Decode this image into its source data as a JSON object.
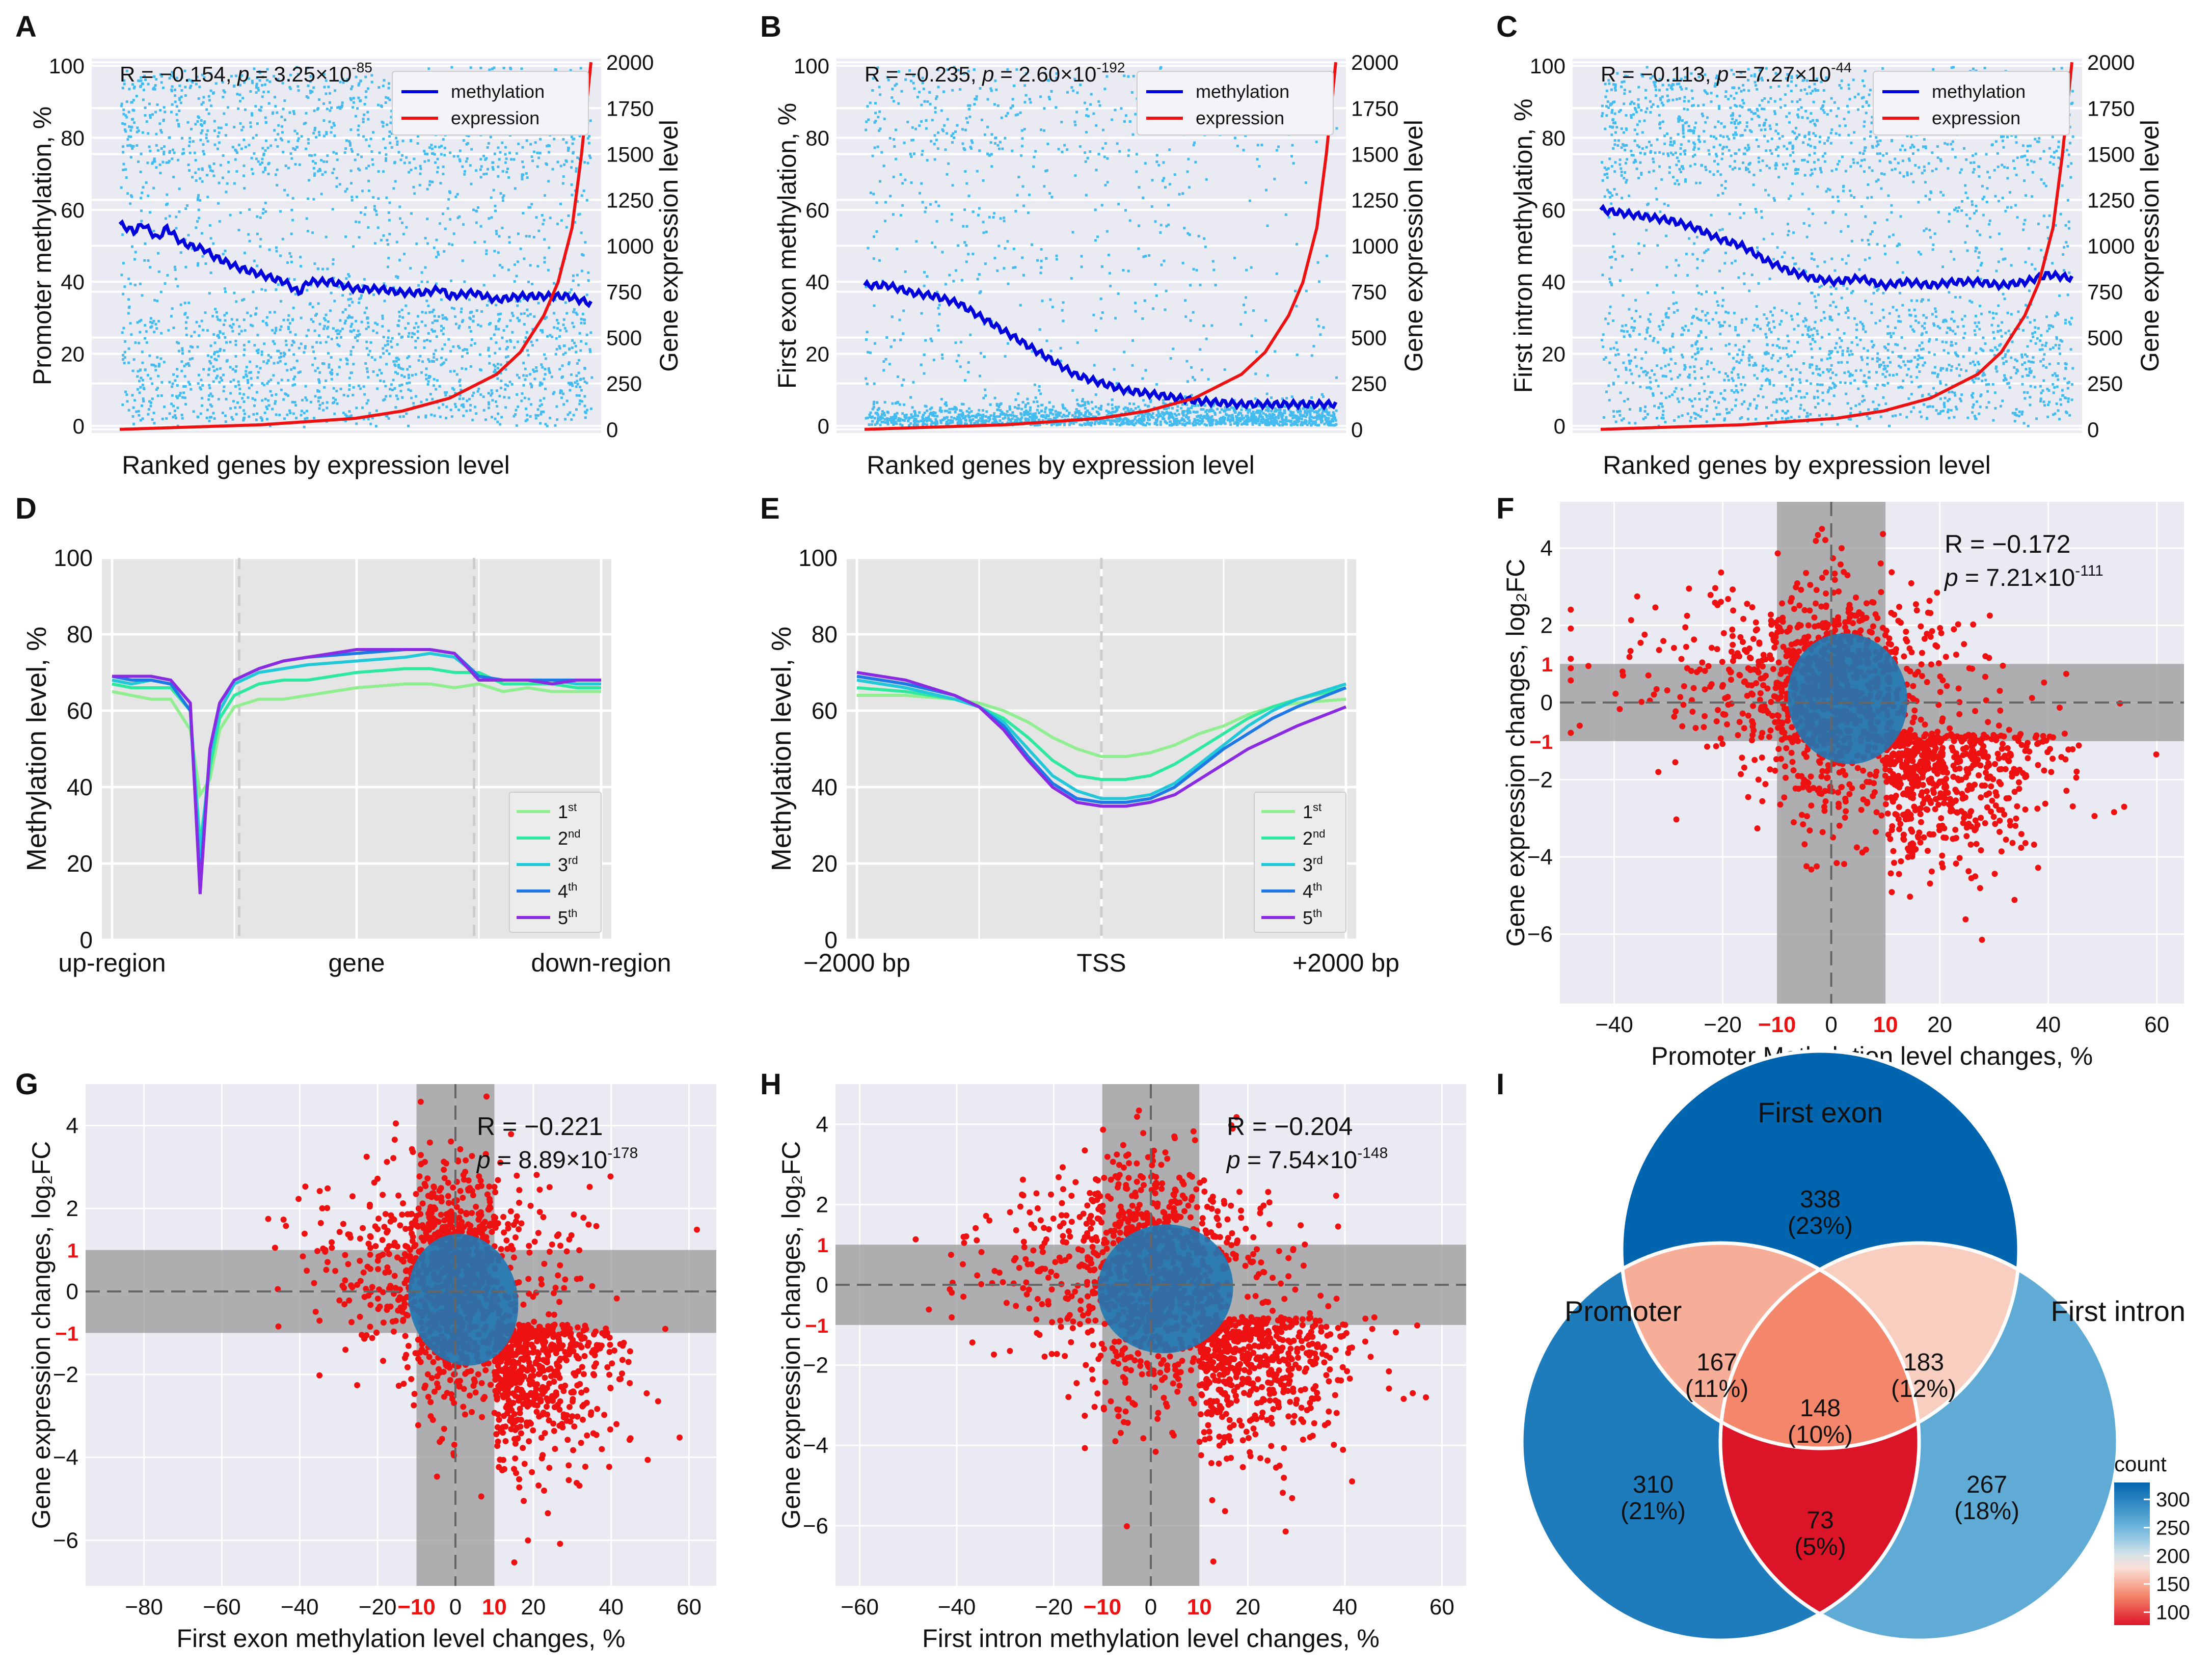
{
  "figure": {
    "colors": {
      "grey_bg": "#e5e5e5",
      "seaborn_bg": "#eaeaf2",
      "scatter_dot": "#44bbee",
      "methylation_line": "#0000dd",
      "expression_line": "#ee1111",
      "red_dot": "#ee1111",
      "blue_ellipse": "#1f78b4",
      "shade": "#999999",
      "red_label": "#ee1111"
    }
  },
  "chart_data": [
    {
      "panel": "A",
      "type": "line",
      "annotation": {
        "prefix": "R = −0.154, ",
        "p": "p",
        "mid": " = 3.25×10",
        "exp": "-85"
      },
      "xlabel": "Ranked genes by expression level",
      "ylabel": "Promoter methylation, %",
      "ylabel2": "Gene expression level",
      "ylim": [
        -2,
        102
      ],
      "y_ticks": [
        0,
        20,
        40,
        60,
        80,
        100
      ],
      "y2lim": [
        -20,
        2020
      ],
      "y2_ticks": [
        0,
        250,
        500,
        750,
        1000,
        1250,
        1500,
        1750,
        2000
      ],
      "legend": [
        "methylation",
        "expression"
      ],
      "legend_position": "top-right",
      "series": [
        {
          "name": "methylation",
          "x": [
            0,
            0.03,
            0.05,
            0.08,
            0.1,
            0.13,
            0.15,
            0.18,
            0.2,
            0.25,
            0.3,
            0.35,
            0.38,
            0.4,
            0.45,
            0.5,
            0.55,
            0.6,
            0.65,
            0.68,
            0.7,
            0.75,
            0.8,
            0.85,
            0.9,
            0.95,
            1.0
          ],
          "values": [
            56,
            54,
            56,
            52,
            55,
            51,
            50,
            49,
            47,
            44,
            42,
            40,
            37,
            40,
            40,
            38,
            38,
            37,
            37,
            38,
            36,
            37,
            35,
            36,
            36,
            36,
            34
          ]
        },
        {
          "name": "expression",
          "x": [
            0,
            0.3,
            0.5,
            0.6,
            0.7,
            0.8,
            0.85,
            0.9,
            0.93,
            0.96,
            0.98,
            1.0
          ],
          "values": [
            0,
            25,
            60,
            100,
            170,
            300,
            420,
            620,
            800,
            1100,
            1500,
            2000
          ]
        }
      ]
    },
    {
      "panel": "B",
      "type": "line",
      "annotation": {
        "prefix": "R = −0.235, ",
        "p": "p",
        "mid": " = 2.60×10",
        "exp": "-192"
      },
      "xlabel": "Ranked genes by expression level",
      "ylabel": "First exon methylation, %",
      "ylabel2": "Gene expression level",
      "ylim": [
        -2,
        102
      ],
      "y_ticks": [
        0,
        20,
        40,
        60,
        80,
        100
      ],
      "y2lim": [
        -20,
        2020
      ],
      "y2_ticks": [
        0,
        250,
        500,
        750,
        1000,
        1250,
        1500,
        1750,
        2000
      ],
      "legend": [
        "methylation",
        "expression"
      ],
      "legend_position": "top-right",
      "series": [
        {
          "name": "methylation",
          "x": [
            0,
            0.05,
            0.1,
            0.15,
            0.2,
            0.25,
            0.3,
            0.35,
            0.4,
            0.45,
            0.5,
            0.55,
            0.6,
            0.65,
            0.7,
            0.8,
            0.9,
            1.0
          ],
          "values": [
            39,
            39,
            37,
            36,
            34,
            30,
            26,
            22,
            18,
            14,
            12,
            10,
            9,
            8,
            7,
            6,
            6,
            6
          ]
        },
        {
          "name": "expression",
          "x": [
            0,
            0.3,
            0.5,
            0.6,
            0.7,
            0.8,
            0.85,
            0.9,
            0.93,
            0.96,
            0.98,
            1.0
          ],
          "values": [
            0,
            25,
            60,
            100,
            170,
            300,
            420,
            620,
            800,
            1100,
            1500,
            2000
          ]
        }
      ]
    },
    {
      "panel": "C",
      "type": "line",
      "annotation": {
        "prefix": "R = −0.113, ",
        "p": "p",
        "mid": " = 7.27×10",
        "exp": "-44"
      },
      "xlabel": "Ranked genes by expression level",
      "ylabel": "First intron methylation, %",
      "ylabel2": "Gene expression level",
      "ylim": [
        -2,
        102
      ],
      "y_ticks": [
        0,
        20,
        40,
        60,
        80,
        100
      ],
      "y2lim": [
        -20,
        2020
      ],
      "y2_ticks": [
        0,
        250,
        500,
        750,
        1000,
        1250,
        1500,
        1750,
        2000
      ],
      "legend": [
        "methylation",
        "expression"
      ],
      "legend_position": "top-right",
      "series": [
        {
          "name": "methylation",
          "x": [
            0,
            0.05,
            0.1,
            0.15,
            0.2,
            0.25,
            0.3,
            0.35,
            0.4,
            0.45,
            0.5,
            0.55,
            0.6,
            0.65,
            0.7,
            0.75,
            0.8,
            0.85,
            0.9,
            0.95,
            1.0
          ],
          "values": [
            60,
            59,
            58,
            57,
            55,
            52,
            50,
            46,
            43,
            41,
            40,
            41,
            39,
            40,
            39,
            40,
            40,
            39,
            40,
            42,
            41
          ]
        },
        {
          "name": "expression",
          "x": [
            0,
            0.3,
            0.5,
            0.6,
            0.7,
            0.8,
            0.85,
            0.9,
            0.93,
            0.96,
            0.98,
            1.0
          ],
          "values": [
            0,
            25,
            60,
            100,
            170,
            300,
            420,
            620,
            800,
            1100,
            1500,
            2000
          ]
        }
      ]
    },
    {
      "panel": "D",
      "type": "line",
      "xlabel": "",
      "ylabel": "Methylation level, %",
      "ylim": [
        0,
        100
      ],
      "y_ticks": [
        0,
        20,
        40,
        60,
        80,
        100
      ],
      "categories": [
        "up-region",
        "gene",
        "down-region"
      ],
      "legend_position": "bottom-right",
      "x": [
        0,
        0.04,
        0.08,
        0.12,
        0.16,
        0.18,
        0.2,
        0.22,
        0.25,
        0.3,
        0.35,
        0.4,
        0.5,
        0.6,
        0.65,
        0.7,
        0.75,
        0.8,
        0.85,
        0.9,
        0.95,
        1.0
      ],
      "series": [
        {
          "name": "1",
          "sup": "st",
          "color": "#90ee90",
          "values": [
            65,
            64,
            63,
            63,
            55,
            38,
            42,
            55,
            61,
            63,
            63,
            64,
            66,
            67,
            67,
            66,
            67,
            65,
            66,
            65,
            65,
            65
          ]
        },
        {
          "name": "2",
          "sup": "nd",
          "color": "#2ee8a0",
          "values": [
            67,
            66,
            66,
            66,
            60,
            25,
            45,
            58,
            64,
            67,
            68,
            68,
            70,
            71,
            71,
            70,
            70,
            67,
            67,
            67,
            66,
            66
          ]
        },
        {
          "name": "3",
          "sup": "rd",
          "color": "#22c8d8",
          "values": [
            68,
            67,
            68,
            67,
            60,
            22,
            48,
            60,
            67,
            70,
            71,
            72,
            73,
            74,
            75,
            74,
            69,
            68,
            68,
            68,
            67,
            67
          ]
        },
        {
          "name": "4",
          "sup": "th",
          "color": "#1e78e6",
          "values": [
            69,
            68,
            68,
            67,
            60,
            15,
            50,
            62,
            68,
            71,
            73,
            74,
            75,
            76,
            76,
            75,
            69,
            68,
            68,
            68,
            68,
            68
          ]
        },
        {
          "name": "5",
          "sup": "th",
          "color": "#8a2be2",
          "values": [
            69,
            69,
            69,
            68,
            62,
            12,
            50,
            62,
            68,
            71,
            73,
            74,
            76,
            76,
            76,
            75,
            68,
            68,
            68,
            67,
            68,
            68
          ]
        }
      ]
    },
    {
      "panel": "E",
      "type": "line",
      "xlabel": "",
      "ylabel": "Methylation level, %",
      "ylim": [
        0,
        100
      ],
      "y_ticks": [
        0,
        20,
        40,
        60,
        80,
        100
      ],
      "categories": [
        "−2000 bp",
        "TSS",
        "+2000 bp"
      ],
      "legend_position": "bottom-right",
      "x": [
        0,
        0.1,
        0.2,
        0.25,
        0.3,
        0.35,
        0.4,
        0.45,
        0.5,
        0.55,
        0.6,
        0.65,
        0.7,
        0.75,
        0.8,
        0.85,
        0.9,
        1.0
      ],
      "series": [
        {
          "name": "1",
          "sup": "st",
          "color": "#90ee90",
          "values": [
            64,
            64,
            63,
            62,
            60,
            57,
            53,
            50,
            48,
            48,
            49,
            51,
            54,
            56,
            59,
            61,
            62,
            63
          ]
        },
        {
          "name": "2",
          "sup": "nd",
          "color": "#2ee8a0",
          "values": [
            66,
            65,
            63,
            61,
            58,
            53,
            47,
            43,
            42,
            42,
            43,
            46,
            50,
            54,
            58,
            61,
            63,
            66
          ]
        },
        {
          "name": "3",
          "sup": "rd",
          "color": "#22c8d8",
          "values": [
            68,
            66,
            63,
            61,
            57,
            50,
            43,
            39,
            37,
            37,
            38,
            41,
            46,
            51,
            56,
            60,
            63,
            67
          ]
        },
        {
          "name": "4",
          "sup": "th",
          "color": "#1e78e6",
          "values": [
            69,
            67,
            64,
            61,
            56,
            48,
            41,
            37,
            36,
            36,
            37,
            40,
            45,
            50,
            54,
            58,
            61,
            66
          ]
        },
        {
          "name": "5",
          "sup": "th",
          "color": "#8a2be2",
          "values": [
            70,
            68,
            64,
            61,
            55,
            47,
            40,
            36,
            35,
            35,
            36,
            38,
            42,
            46,
            50,
            53,
            56,
            61
          ]
        }
      ]
    },
    {
      "panel": "F",
      "type": "scatter",
      "annotation": {
        "line1": "R = −0.172",
        "p": "p",
        "mid": " = 7.21×10",
        "exp": "-111"
      },
      "xlabel": "Promoter Methylation level changes, %",
      "ylabel": "Gene expression changes, log₂FC",
      "xlim": [
        -50,
        65
      ],
      "ylim": [
        -7.8,
        5.2
      ],
      "x_ticks": [
        -40,
        -20,
        0,
        20,
        40,
        60
      ],
      "y_ticks": [
        -6,
        -4,
        -2,
        0,
        2,
        4
      ],
      "red_ticks_x": [
        -10,
        10
      ],
      "red_ticks_y": [
        1,
        -1
      ],
      "ellipse": {
        "cx": 3,
        "cy": 0.1,
        "rx": 11,
        "ry": 1.7
      }
    },
    {
      "panel": "G",
      "type": "scatter",
      "annotation": {
        "line1": "R = −0.221",
        "p": "p",
        "mid": " = 8.89×10",
        "exp": "-178"
      },
      "xlabel": "First exon methylation level changes, %",
      "ylabel": "Gene expression changes, log₂FC",
      "xlim": [
        -95,
        67
      ],
      "ylim": [
        -7.1,
        5.0
      ],
      "x_ticks": [
        -80,
        -60,
        -40,
        -20,
        0,
        20,
        40,
        60
      ],
      "y_ticks": [
        -6,
        -4,
        -2,
        0,
        2,
        4
      ],
      "red_ticks_x": [
        -10,
        10
      ],
      "red_ticks_y": [
        1,
        -1
      ],
      "ellipse": {
        "cx": 2,
        "cy": -0.2,
        "rx": 14,
        "ry": 1.6
      }
    },
    {
      "panel": "H",
      "type": "scatter",
      "annotation": {
        "line1": "R = −0.204",
        "p": "p",
        "mid": " = 7.54×10",
        "exp": "-148"
      },
      "xlabel": "First intron methylation level changes, %",
      "ylabel": "Gene expression changes, log₂FC",
      "xlim": [
        -65,
        65
      ],
      "ylim": [
        -7.5,
        5.0
      ],
      "x_ticks": [
        -60,
        -40,
        -20,
        0,
        20,
        40,
        60
      ],
      "y_ticks": [
        -6,
        -4,
        -2,
        0,
        2,
        4
      ],
      "red_ticks_x": [
        -10,
        10
      ],
      "red_ticks_y": [
        1,
        -1
      ],
      "ellipse": {
        "cx": 3,
        "cy": -0.1,
        "rx": 14,
        "ry": 1.6
      }
    },
    {
      "panel": "I",
      "type": "venn",
      "sets": [
        "First exon",
        "Promoter",
        "First intron"
      ],
      "regions": [
        {
          "id": "exon_only",
          "count": 338,
          "pct": "(23%)"
        },
        {
          "id": "promoter_only",
          "count": 310,
          "pct": "(21%)"
        },
        {
          "id": "intron_only",
          "count": 267,
          "pct": "(18%)"
        },
        {
          "id": "exon_promoter",
          "count": 167,
          "pct": "(11%)"
        },
        {
          "id": "exon_intron",
          "count": 183,
          "pct": "(12%)"
        },
        {
          "id": "promoter_intron",
          "count": 73,
          "pct": "(5%)"
        },
        {
          "id": "all_three",
          "count": 148,
          "pct": "(10%)"
        }
      ],
      "colorbar": {
        "title": "count",
        "ticks": [
          300,
          250,
          200,
          150,
          100
        ],
        "range": [
          73,
          338
        ]
      }
    }
  ],
  "panel_letters": [
    "A",
    "B",
    "C",
    "D",
    "E",
    "F",
    "G",
    "H",
    "I"
  ]
}
